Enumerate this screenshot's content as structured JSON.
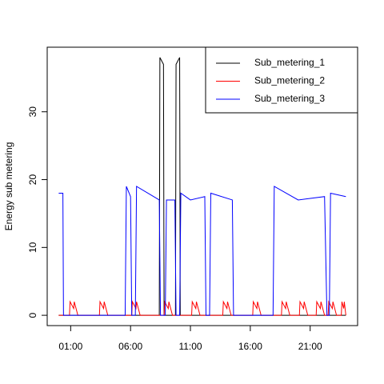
{
  "chart_data": {
    "type": "line",
    "ylabel": "Energy sub metering",
    "xlim": [
      -0.96,
      24.96
    ],
    "xticks": [
      {
        "value": 1,
        "label": "01:00"
      },
      {
        "value": 6,
        "label": "06:00"
      },
      {
        "value": 11,
        "label": "11:00"
      },
      {
        "value": 16,
        "label": "16:00"
      },
      {
        "value": 21,
        "label": "21:00"
      }
    ],
    "ylim": [
      -1.52,
      39.52
    ],
    "yticks": [
      0,
      10,
      20,
      30
    ],
    "legend": "top-right",
    "series": [
      {
        "name": "Sub_metering_1",
        "color": "#000000",
        "x": [
          0,
          8.4,
          8.45,
          8.75,
          8.8,
          9.75,
          9.8,
          10.1,
          10.15,
          23.98
        ],
        "values": [
          0,
          0,
          38,
          37,
          0,
          0,
          37,
          38,
          0,
          0
        ]
      },
      {
        "name": "Sub_metering_2",
        "color": "#ff0000",
        "x": [
          0,
          0.9,
          0.95,
          1.25,
          1.3,
          1.6,
          3.4,
          3.45,
          3.75,
          3.8,
          4.1,
          6.1,
          6.15,
          6.45,
          6.5,
          6.8,
          8.8,
          8.85,
          9.15,
          9.2,
          9.5,
          11.1,
          11.15,
          11.45,
          11.5,
          11.8,
          13.7,
          13.75,
          14.05,
          14.1,
          14.4,
          16.2,
          16.25,
          16.55,
          16.6,
          16.9,
          18.6,
          18.65,
          18.95,
          19,
          19.3,
          20.1,
          20.15,
          20.45,
          20.5,
          20.8,
          21.5,
          21.55,
          21.85,
          21.9,
          22.2,
          22.5,
          22.55,
          22.85,
          22.9,
          23.2,
          23.6,
          23.65,
          23.8,
          23.85,
          23.98
        ],
        "values": [
          0,
          0,
          2,
          1,
          2,
          0,
          0,
          2,
          1,
          2,
          0,
          0,
          2,
          1,
          2,
          0,
          0,
          2,
          1,
          2,
          0,
          0,
          2,
          1,
          2,
          0,
          0,
          2,
          1,
          2,
          0,
          0,
          2,
          1,
          2,
          0,
          0,
          2,
          1,
          2,
          0,
          0,
          2,
          1,
          2,
          0,
          0,
          2,
          1,
          2,
          0,
          0,
          2,
          1,
          2,
          0,
          0,
          2,
          1,
          2,
          0
        ]
      },
      {
        "name": "Sub_metering_3",
        "color": "#0000ff",
        "x": [
          0,
          0.35,
          0.4,
          5.55,
          5.65,
          6.0,
          6.1,
          6.4,
          6.5,
          8.4,
          8.5,
          8.9,
          9.0,
          9.7,
          9.8,
          10.1,
          10.2,
          11.0,
          12.2,
          12.3,
          12.6,
          12.7,
          14.5,
          14.6,
          17.9,
          18.0,
          20.0,
          22.2,
          22.4,
          22.6,
          22.7,
          23.98
        ],
        "values": [
          18,
          18,
          0,
          0,
          19,
          17.5,
          0,
          0,
          19,
          17,
          0,
          0,
          17,
          17,
          0,
          0,
          18,
          17,
          17.5,
          0,
          0,
          18,
          17,
          0,
          0,
          19,
          17,
          17.5,
          0,
          0,
          18,
          17.5
        ]
      }
    ]
  }
}
